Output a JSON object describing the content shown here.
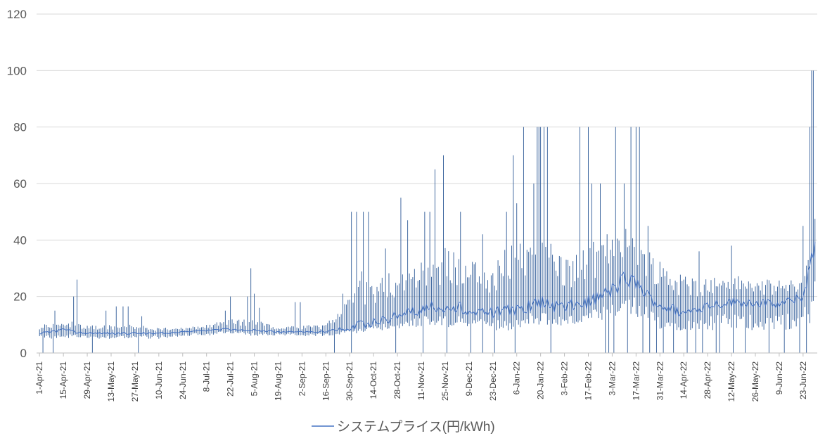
{
  "chart_data": {
    "type": "line",
    "title": "",
    "xlabel": "",
    "ylabel": "",
    "ylim": [
      0,
      120
    ],
    "yticks": [
      "0",
      "20",
      "40",
      "60",
      "80",
      "100",
      "120"
    ],
    "ytick_values": [
      0,
      20,
      40,
      60,
      80,
      100,
      120
    ],
    "grid": true,
    "legend_position": "bottom",
    "x_start": "2021-04-01",
    "x_end": "2022-06-30",
    "xtick_labels": [
      "1-Apr-21",
      "15-Apr-21",
      "29-Apr-21",
      "13-May-21",
      "27-May-21",
      "10-Jun-21",
      "24-Jun-21",
      "8-Jul-21",
      "22-Jul-21",
      "5-Aug-21",
      "19-Aug-21",
      "2-Sep-21",
      "16-Sep-21",
      "30-Sep-21",
      "14-Oct-21",
      "28-Oct-21",
      "11-Nov-21",
      "25-Nov-21",
      "9-Dec-21",
      "23-Dec-21",
      "6-Jan-22",
      "20-Jan-22",
      "3-Feb-22",
      "17-Feb-22",
      "3-Mar-22",
      "17-Mar-22",
      "31-Mar-22",
      "14-Apr-22",
      "28-Apr-22",
      "12-May-22",
      "26-May-22",
      "9-Jun-22",
      "23-Jun-22"
    ],
    "xtick_dates": [
      "2021-04-01",
      "2021-04-15",
      "2021-04-29",
      "2021-05-13",
      "2021-05-27",
      "2021-06-10",
      "2021-06-24",
      "2021-07-08",
      "2021-07-22",
      "2021-08-05",
      "2021-08-19",
      "2021-09-02",
      "2021-09-16",
      "2021-09-30",
      "2021-10-14",
      "2021-10-28",
      "2021-11-11",
      "2021-11-25",
      "2021-12-09",
      "2021-12-23",
      "2022-01-06",
      "2022-01-20",
      "2022-02-03",
      "2022-02-17",
      "2022-03-03",
      "2022-03-17",
      "2022-03-31",
      "2022-04-14",
      "2022-04-28",
      "2022-05-12",
      "2022-05-26",
      "2022-06-09",
      "2022-06-23"
    ],
    "series": [
      {
        "name": "システムプライス(円/kWh)",
        "color": "#4472C4",
        "render_color": "#2E5A97",
        "envelope_dates": [
          "2021-04-01",
          "2021-04-15",
          "2021-04-29",
          "2021-05-13",
          "2021-05-27",
          "2021-06-10",
          "2021-06-24",
          "2021-07-08",
          "2021-07-22",
          "2021-08-05",
          "2021-08-19",
          "2021-09-02",
          "2021-09-16",
          "2021-09-30",
          "2021-10-07",
          "2021-10-14",
          "2021-10-28",
          "2021-11-11",
          "2021-11-25",
          "2021-12-09",
          "2021-12-23",
          "2022-01-06",
          "2022-01-13",
          "2022-01-20",
          "2022-02-03",
          "2022-02-17",
          "2022-03-03",
          "2022-03-10",
          "2022-03-17",
          "2022-03-24",
          "2022-03-31",
          "2022-04-14",
          "2022-04-28",
          "2022-05-12",
          "2022-05-26",
          "2022-06-09",
          "2022-06-23",
          "2022-06-30"
        ],
        "mean": [
          7,
          8,
          7,
          7,
          7,
          7,
          7.5,
          8,
          8.5,
          8,
          7.5,
          7.5,
          7.5,
          9,
          10,
          11,
          13,
          16,
          17,
          15,
          14,
          15,
          17,
          18,
          16,
          18,
          22,
          26,
          25,
          20,
          17,
          14,
          17,
          18,
          18,
          17,
          20,
          38
        ],
        "high": [
          10,
          12,
          10,
          10,
          10,
          9,
          9,
          10,
          12,
          12,
          9,
          10,
          10,
          22,
          30,
          26,
          30,
          36,
          38,
          33,
          33,
          40,
          42,
          48,
          34,
          38,
          45,
          48,
          42,
          38,
          34,
          28,
          27,
          28,
          26,
          26,
          26,
          55
        ],
        "low": [
          5,
          5,
          5,
          5,
          5,
          5,
          6,
          6,
          7,
          6,
          6,
          6,
          6,
          7,
          7,
          8,
          8,
          9,
          9,
          9,
          8,
          8,
          10,
          10,
          9,
          10,
          11,
          12,
          12,
          10,
          8,
          8,
          8,
          8,
          8,
          8,
          8,
          12
        ],
        "spikes": [
          {
            "date": "2021-04-23",
            "value": 26
          },
          {
            "date": "2021-04-21",
            "value": 20
          },
          {
            "date": "2021-04-10",
            "value": 15
          },
          {
            "date": "2021-05-10",
            "value": 15
          },
          {
            "date": "2021-05-16",
            "value": 16.5
          },
          {
            "date": "2021-05-20",
            "value": 16.5
          },
          {
            "date": "2021-05-23",
            "value": 16.5
          },
          {
            "date": "2021-05-31",
            "value": 13
          },
          {
            "date": "2021-07-22",
            "value": 20
          },
          {
            "date": "2021-07-19",
            "value": 15
          },
          {
            "date": "2021-08-01",
            "value": 20
          },
          {
            "date": "2021-08-03",
            "value": 30
          },
          {
            "date": "2021-08-05",
            "value": 21
          },
          {
            "date": "2021-08-08",
            "value": 16
          },
          {
            "date": "2021-08-29",
            "value": 18
          },
          {
            "date": "2021-09-01",
            "value": 18
          },
          {
            "date": "2021-09-26",
            "value": 21
          },
          {
            "date": "2021-10-01",
            "value": 50
          },
          {
            "date": "2021-10-04",
            "value": 50
          },
          {
            "date": "2021-10-08",
            "value": 50
          },
          {
            "date": "2021-10-11",
            "value": 50
          },
          {
            "date": "2021-10-21",
            "value": 37
          },
          {
            "date": "2021-10-30",
            "value": 55
          },
          {
            "date": "2021-11-03",
            "value": 47
          },
          {
            "date": "2021-11-13",
            "value": 50
          },
          {
            "date": "2021-11-16",
            "value": 50
          },
          {
            "date": "2021-11-19",
            "value": 65
          },
          {
            "date": "2021-11-24",
            "value": 70
          },
          {
            "date": "2021-12-04",
            "value": 50
          },
          {
            "date": "2021-12-17",
            "value": 42
          },
          {
            "date": "2021-12-31",
            "value": 50
          },
          {
            "date": "2022-01-04",
            "value": 70
          },
          {
            "date": "2022-01-06",
            "value": 53
          },
          {
            "date": "2022-01-10",
            "value": 80
          },
          {
            "date": "2022-01-16",
            "value": 60
          },
          {
            "date": "2022-01-18",
            "value": 80
          },
          {
            "date": "2022-01-19",
            "value": 80
          },
          {
            "date": "2022-01-20",
            "value": 80
          },
          {
            "date": "2022-01-22",
            "value": 80
          },
          {
            "date": "2022-01-24",
            "value": 80
          },
          {
            "date": "2022-02-12",
            "value": 80
          },
          {
            "date": "2022-02-17",
            "value": 80
          },
          {
            "date": "2022-02-19",
            "value": 60
          },
          {
            "date": "2022-02-24",
            "value": 60
          },
          {
            "date": "2022-03-05",
            "value": 80
          },
          {
            "date": "2022-03-10",
            "value": 60
          },
          {
            "date": "2022-03-14",
            "value": 80
          },
          {
            "date": "2022-03-17",
            "value": 80
          },
          {
            "date": "2022-03-19",
            "value": 80
          },
          {
            "date": "2022-03-24",
            "value": 45
          },
          {
            "date": "2022-04-23",
            "value": 36
          },
          {
            "date": "2022-05-12",
            "value": 38
          },
          {
            "date": "2022-06-23",
            "value": 45
          },
          {
            "date": "2022-06-27",
            "value": 80
          },
          {
            "date": "2022-06-28",
            "value": 100
          },
          {
            "date": "2022-06-29",
            "value": 100
          }
        ],
        "zero_dates": [
          "2021-04-03",
          "2021-04-09",
          "2021-05-02",
          "2021-05-29",
          "2021-09-21",
          "2021-10-01",
          "2021-10-27",
          "2021-11-12",
          "2021-11-26",
          "2021-12-10",
          "2021-12-17",
          "2021-12-24",
          "2022-01-05",
          "2022-01-26",
          "2022-02-27",
          "2022-03-01",
          "2022-03-04",
          "2022-03-12",
          "2022-03-21",
          "2022-03-25",
          "2022-03-29",
          "2022-04-02",
          "2022-04-08",
          "2022-04-16",
          "2022-04-21",
          "2022-04-25",
          "2022-05-03",
          "2022-05-05",
          "2022-05-13",
          "2022-05-20",
          "2022-06-03",
          "2022-06-12",
          "2022-06-21",
          "2022-06-25"
        ]
      }
    ]
  }
}
